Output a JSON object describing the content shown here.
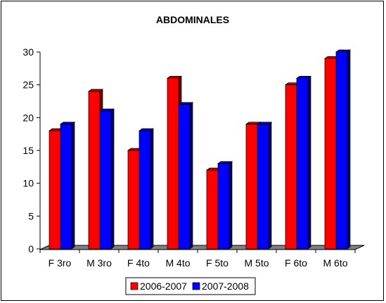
{
  "chart_data": {
    "type": "bar",
    "title": "ABDOMINALES",
    "categories": [
      "F 3ro",
      "M 3ro",
      "F 4to",
      "M 4to",
      "F 5to",
      "M 5to",
      "F 6to",
      "M 6to"
    ],
    "series": [
      {
        "name": "2006-2007",
        "color": "#ff0000",
        "values": [
          18,
          24,
          15,
          26,
          12,
          19,
          25,
          29
        ]
      },
      {
        "name": "2007-2008",
        "color": "#0000ff",
        "values": [
          19,
          21,
          18,
          22,
          13,
          19,
          26,
          30
        ]
      }
    ],
    "yticks": [
      0,
      5,
      10,
      15,
      20,
      25,
      30
    ],
    "ylim": [
      0,
      30
    ],
    "grid": false,
    "legend_position": "bottom",
    "style": "3d-clustered-column"
  }
}
